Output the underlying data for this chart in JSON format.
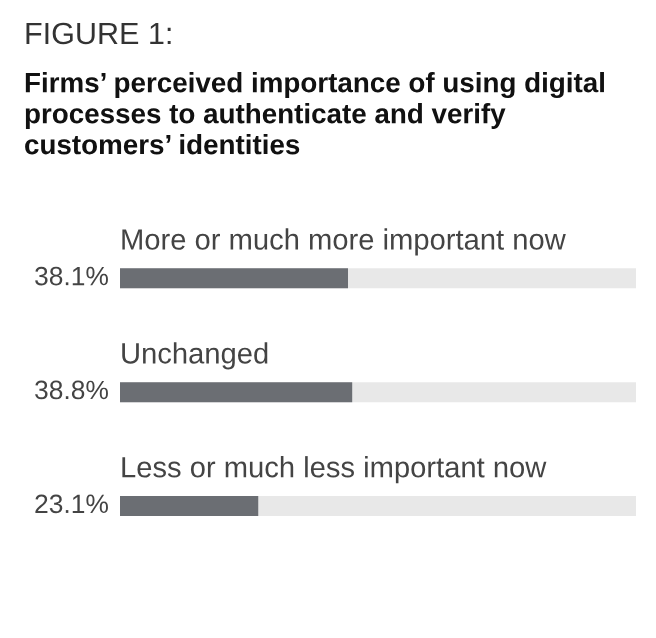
{
  "chart_data": {
    "type": "bar",
    "orientation": "horizontal",
    "title": "FIGURE 1:",
    "subtitle": "Firms’ perceived importance of using digital processes to authenticate and verify customers’ identities",
    "categories": [
      "More or much more important now",
      "Unchanged",
      "Less or much less important now"
    ],
    "values": [
      38.1,
      38.8,
      23.1
    ],
    "value_labels": [
      "38.1%",
      "38.8%",
      "23.1%"
    ],
    "color": "#6b6e73"
  }
}
